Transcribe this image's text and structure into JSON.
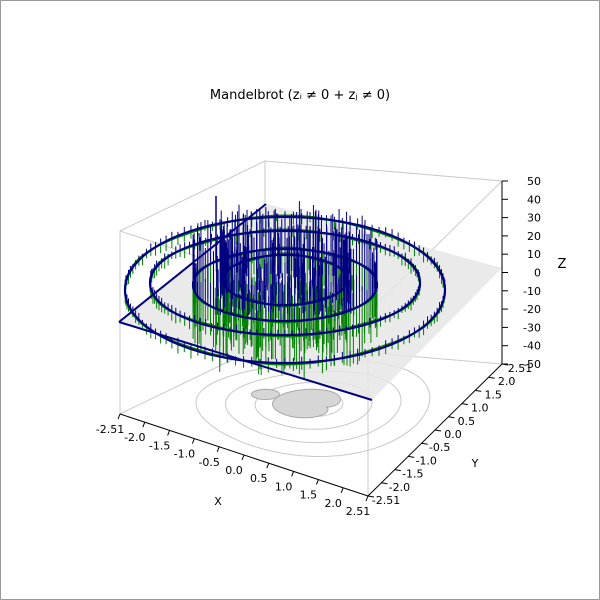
{
  "chart_data": {
    "type": "surface-3d",
    "title": "Mandelbrot (zᵢ ≠ 0 + zⱼ ≠ 0)",
    "xlabel": "X",
    "ylabel": "Y",
    "zlabel": "Z",
    "xlim": [
      -2.51,
      2.51
    ],
    "ylim": [
      -2.51,
      2.51
    ],
    "zlim": [
      -50,
      50
    ],
    "x_ticks": [
      "-2.51",
      "-2.0",
      "-1.5",
      "-1.0",
      "-0.5",
      "0.0",
      "0.5",
      "1.0",
      "1.5",
      "2.0",
      "2.51"
    ],
    "y_ticks": [
      "-2.51",
      "-2.0",
      "-1.5",
      "-1.0",
      "-0.5",
      "0.0",
      "0.5",
      "1.0",
      "1.5",
      "2.0",
      "2.51"
    ],
    "z_ticks": [
      "-50",
      "-40",
      "-30",
      "-20",
      "-10",
      "0",
      "10",
      "20",
      "30",
      "40",
      "50"
    ],
    "grid": true,
    "series": [
      {
        "color": "#000080",
        "values": [
          {
            "r": 0.5
          },
          {
            "r": 1.0
          },
          {
            "r": 1.5
          },
          {
            "r": 2.0
          }
        ]
      },
      {
        "color": "#008000",
        "values": [
          {
            "r": 0.5
          },
          {
            "r": 1.0
          },
          {
            "r": 1.5
          },
          {
            "r": 2.0
          }
        ]
      }
    ],
    "colors": {
      "plane": "#e6e6e6",
      "contour": "#c8c8c8",
      "grid": "#c8c8c8"
    }
  }
}
